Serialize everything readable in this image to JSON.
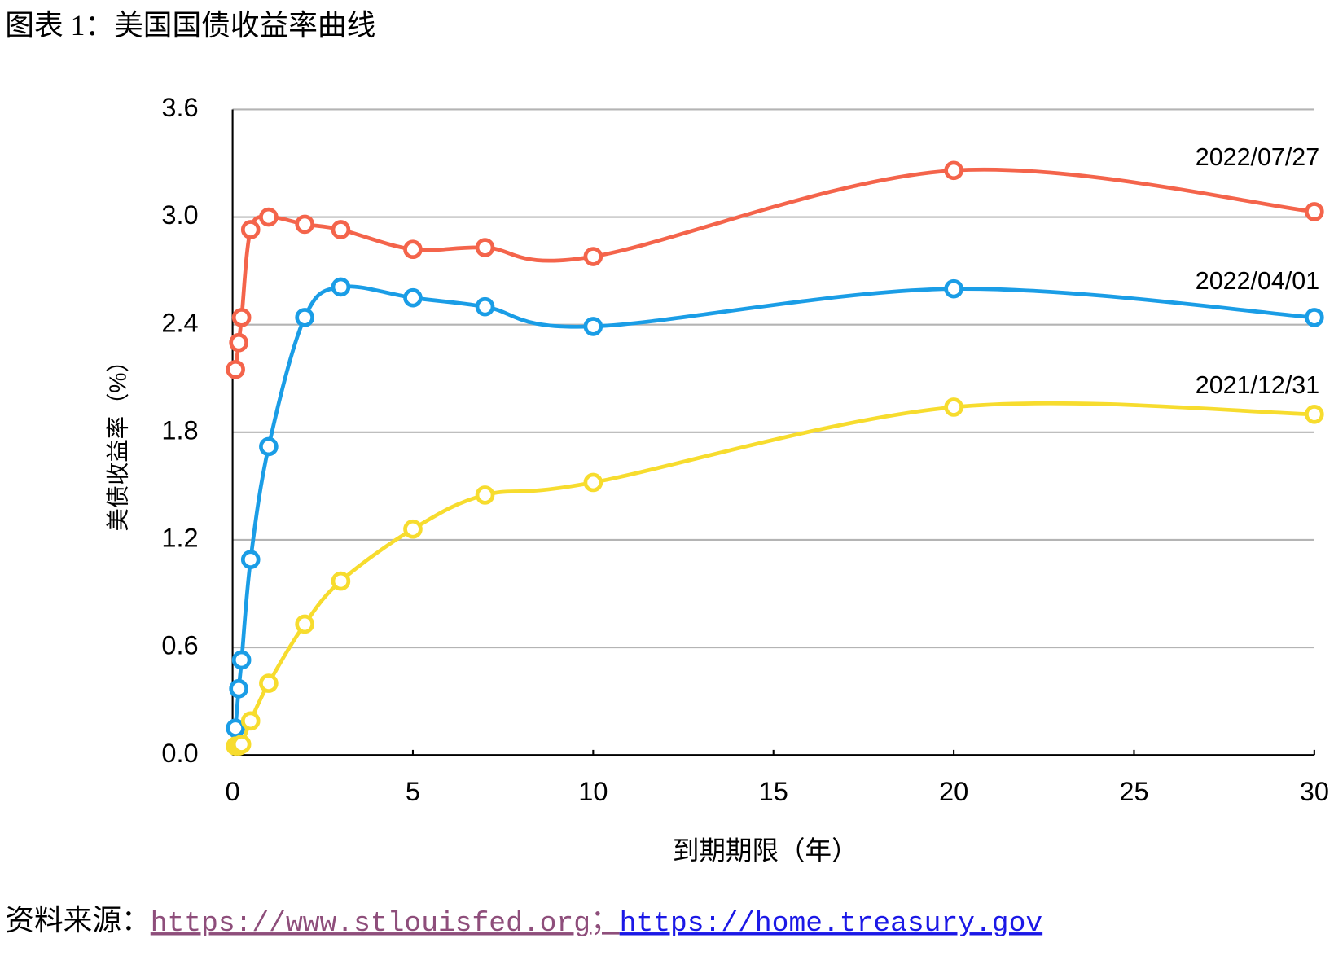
{
  "header": {
    "title": "图表 1：美国国债收益率曲线"
  },
  "chart_data": {
    "type": "line",
    "x_label": "到期期限（年）",
    "y_label": "美债收益率（%）",
    "x": [
      0.08,
      0.17,
      0.25,
      0.5,
      1,
      2,
      3,
      5,
      7,
      10,
      20,
      30
    ],
    "series": [
      {
        "name": "2022/07/27",
        "color": "#f4644b",
        "values": [
          2.15,
          2.3,
          2.44,
          2.93,
          3.0,
          2.96,
          2.93,
          2.82,
          2.83,
          2.78,
          3.26,
          3.03
        ]
      },
      {
        "name": "2022/04/01",
        "color": "#1a9de6",
        "values": [
          0.15,
          0.37,
          0.53,
          1.09,
          1.72,
          2.44,
          2.61,
          2.55,
          2.5,
          2.39,
          2.6,
          2.44
        ]
      },
      {
        "name": "2021/12/31",
        "color": "#f7dc2e",
        "values": [
          0.05,
          0.05,
          0.06,
          0.19,
          0.4,
          0.73,
          0.97,
          1.26,
          1.45,
          1.52,
          1.94,
          1.9
        ]
      }
    ],
    "xlim": [
      0,
      30
    ],
    "xticks": [
      0,
      5,
      10,
      15,
      20,
      25,
      30
    ],
    "ylim": [
      0,
      3.6
    ],
    "yticks": [
      {
        "value": 0,
        "label": "0.0"
      },
      0.6,
      1.2,
      1.8,
      2.4,
      {
        "value": 3,
        "label": "3.0"
      },
      3.6
    ],
    "grid": true
  },
  "source": {
    "label": "资料来源：",
    "links": [
      "https://www.stlouisfed.org",
      "https://home.treasury.gov"
    ],
    "separator": "；"
  }
}
